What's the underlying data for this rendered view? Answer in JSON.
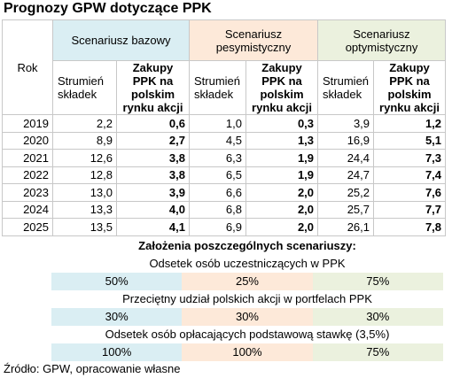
{
  "title": "Prognozy GPW dotyczące PPK",
  "table": {
    "row_header": "Rok",
    "scenarios": [
      "Scenariusz bazowy",
      "Scenariusz pesymistyczny",
      "Scenariusz optymistyczny"
    ],
    "columns": [
      "Strumień składek",
      "Zakupy PPK na polskim rynku akcji"
    ],
    "rows": [
      [
        "2019",
        "2,2",
        "0,6",
        "1,0",
        "0,3",
        "3,9",
        "1,2"
      ],
      [
        "2020",
        "8,9",
        "2,7",
        "4,5",
        "1,3",
        "16,9",
        "5,1"
      ],
      [
        "2021",
        "12,6",
        "3,8",
        "6,3",
        "1,9",
        "24,4",
        "7,3"
      ],
      [
        "2022",
        "12,8",
        "3,8",
        "6,5",
        "1,9",
        "24,7",
        "7,4"
      ],
      [
        "2023",
        "13,0",
        "3,9",
        "6,6",
        "2,0",
        "25,2",
        "7,6"
      ],
      [
        "2024",
        "13,3",
        "4,0",
        "6,8",
        "2,0",
        "25,7",
        "7,7"
      ],
      [
        "2025",
        "13,5",
        "4,1",
        "6,9",
        "2,0",
        "26,1",
        "7,8"
      ]
    ]
  },
  "assumptions": {
    "title": "Założenia poszczególnych scenariuszy:",
    "groups": [
      {
        "label": "Odsetek osób uczestniczących w PPK",
        "values": [
          "50%",
          "25%",
          "75%"
        ]
      },
      {
        "label": "Przeciętny udział polskich akcji w portfelach PPK",
        "values": [
          "30%",
          "30%",
          "30%"
        ]
      },
      {
        "label": "Odsetek osób opłacających podstawową stawkę (3,5%)",
        "values": [
          "100%",
          "100%",
          "75%"
        ]
      }
    ]
  },
  "source": "Źródło: GPW, opracowanie własne"
}
